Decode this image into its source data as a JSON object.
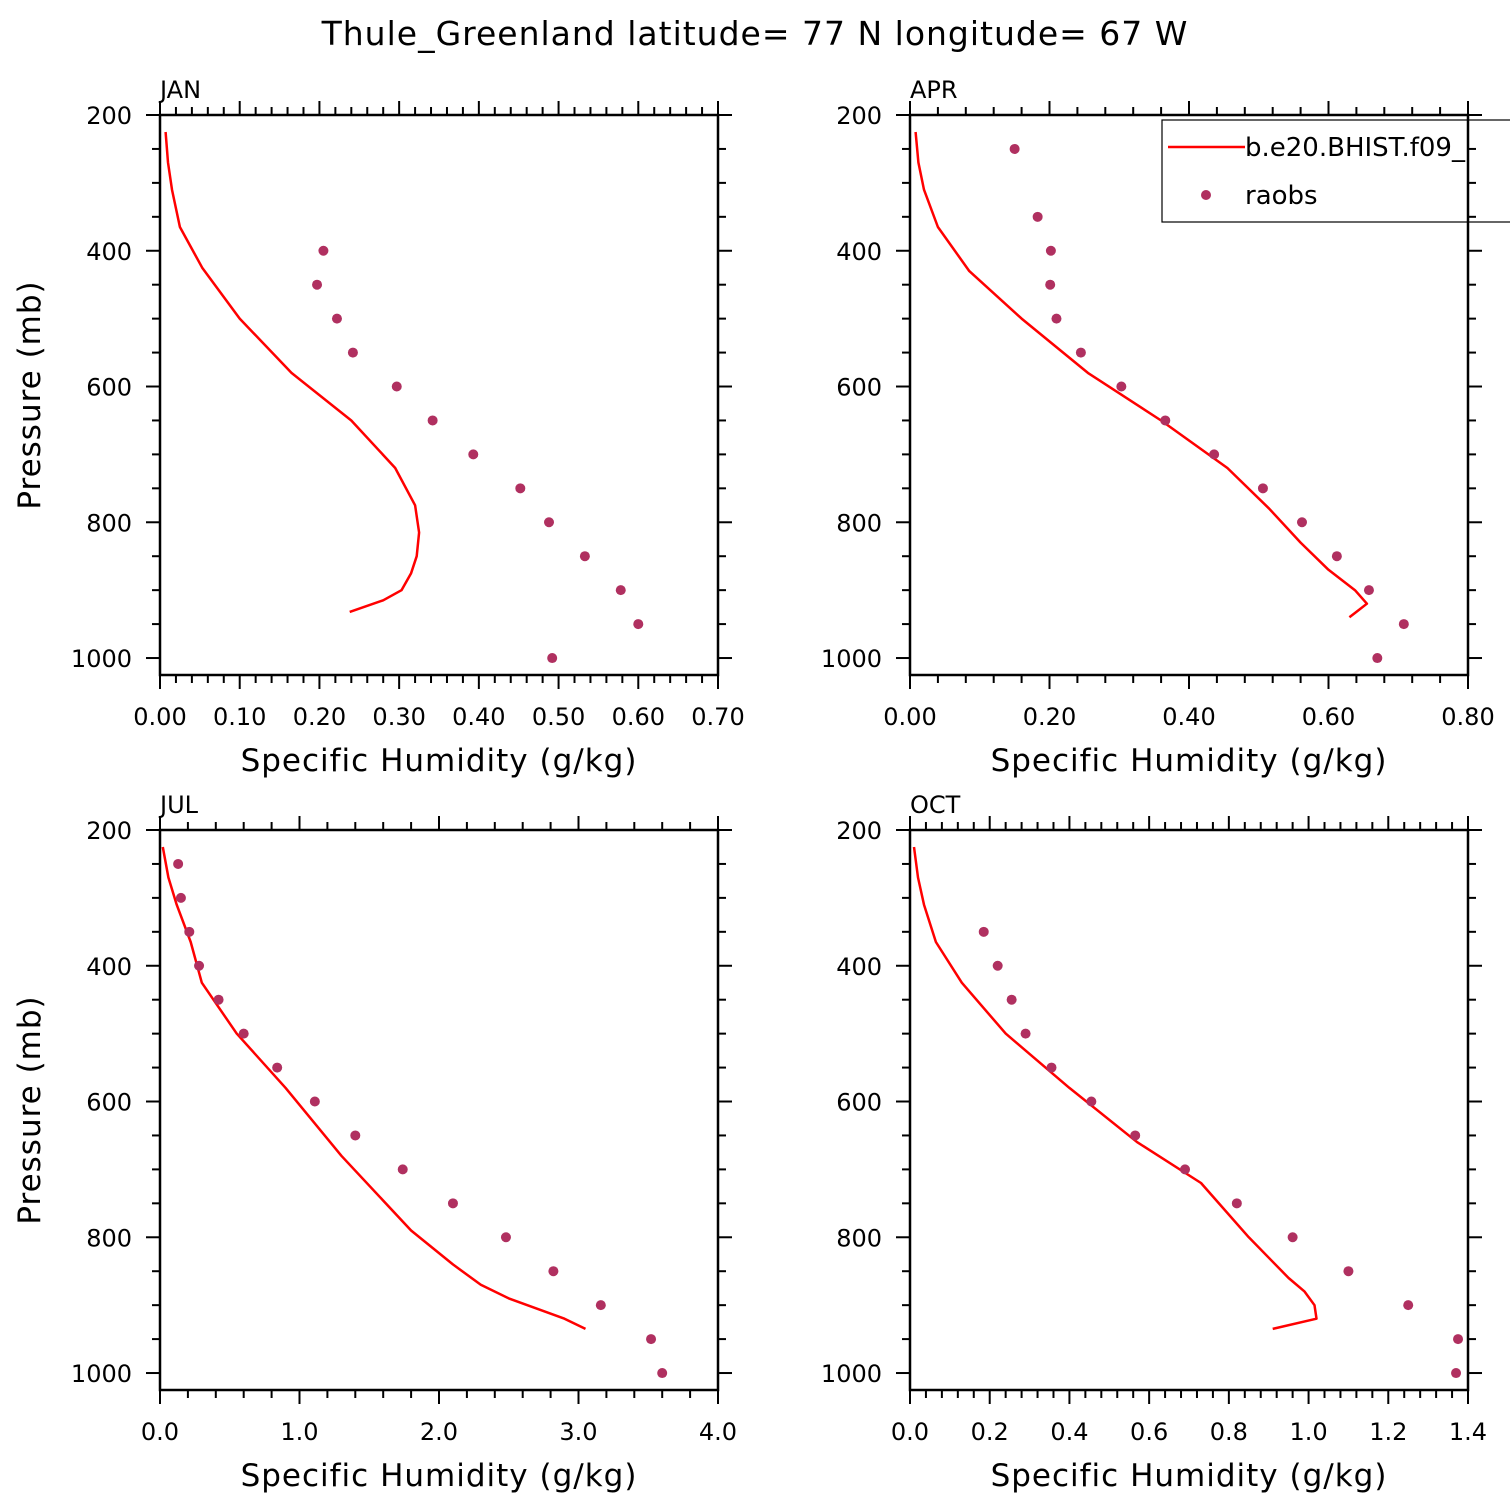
{
  "title": "Thule_Greenland  latitude= 77 N longitude= 67 W",
  "colors": {
    "model": "#ff0000",
    "raobs": "#b03060",
    "axis": "#000000"
  },
  "legend": {
    "placement": "top-right of APR panel",
    "entries": [
      {
        "label": "b.e20.BHIST.f09_",
        "marker": "line",
        "color": "#ff0000"
      },
      {
        "label": "raobs",
        "marker": "dot",
        "color": "#b03060"
      }
    ]
  },
  "chart_data": [
    {
      "type": "line",
      "panel": "JAN",
      "xlabel": "Specific Humidity (g/kg)",
      "ylabel": "Pressure (mb)",
      "xlim": [
        0,
        0.7
      ],
      "ylim": [
        200,
        1025
      ],
      "y_inverted": true,
      "xticks": [
        "0.00",
        "0.10",
        "0.20",
        "0.30",
        "0.40",
        "0.50",
        "0.60",
        "0.70"
      ],
      "xtick_values": [
        0,
        0.1,
        0.2,
        0.3,
        0.4,
        0.5,
        0.6,
        0.7
      ],
      "yticks": [
        200,
        400,
        600,
        800,
        1000
      ],
      "series": [
        {
          "name": "b.e20.BHIST.f09_",
          "kind": "line",
          "color": "#ff0000",
          "x": [
            0.007,
            0.01,
            0.015,
            0.025,
            0.053,
            0.1,
            0.165,
            0.24,
            0.295,
            0.32,
            0.325,
            0.322,
            0.315,
            0.303,
            0.28,
            0.238
          ],
          "y": [
            225,
            270,
            310,
            365,
            425,
            500,
            580,
            650,
            720,
            775,
            815,
            850,
            875,
            900,
            915,
            932
          ]
        },
        {
          "name": "raobs",
          "kind": "scatter",
          "color": "#b03060",
          "x": [
            0.205,
            0.197,
            0.222,
            0.242,
            0.297,
            0.342,
            0.393,
            0.452,
            0.488,
            0.533,
            0.578,
            0.6,
            0.492
          ],
          "y": [
            400,
            450,
            500,
            550,
            600,
            650,
            700,
            750,
            800,
            850,
            900,
            950,
            1000
          ]
        }
      ]
    },
    {
      "type": "line",
      "panel": "APR",
      "xlabel": "Specific Humidity (g/kg)",
      "ylabel": "",
      "xlim": [
        0,
        0.8
      ],
      "ylim": [
        200,
        1025
      ],
      "y_inverted": true,
      "xticks": [
        "0.00",
        "0.20",
        "0.40",
        "0.60",
        "0.80"
      ],
      "xtick_values": [
        0,
        0.2,
        0.4,
        0.6,
        0.8
      ],
      "yticks": [
        200,
        400,
        600,
        800,
        1000
      ],
      "series": [
        {
          "name": "b.e20.BHIST.f09_",
          "kind": "line",
          "color": "#ff0000",
          "x": [
            0.008,
            0.012,
            0.02,
            0.04,
            0.085,
            0.16,
            0.255,
            0.36,
            0.455,
            0.515,
            0.56,
            0.6,
            0.638,
            0.655,
            0.64,
            0.63
          ],
          "y": [
            225,
            270,
            310,
            365,
            430,
            500,
            580,
            650,
            720,
            780,
            830,
            870,
            900,
            920,
            932,
            940
          ]
        },
        {
          "name": "raobs",
          "kind": "scatter",
          "color": "#b03060",
          "x": [
            0.15,
            0.183,
            0.202,
            0.201,
            0.21,
            0.245,
            0.303,
            0.366,
            0.436,
            0.506,
            0.562,
            0.612,
            0.658,
            0.708,
            0.67
          ],
          "y": [
            250,
            350,
            400,
            450,
            500,
            550,
            600,
            650,
            700,
            750,
            800,
            850,
            900,
            950,
            1000
          ]
        }
      ]
    },
    {
      "type": "line",
      "panel": "JUL",
      "xlabel": "Specific Humidity (g/kg)",
      "ylabel": "Pressure (mb)",
      "xlim": [
        0,
        4.0
      ],
      "ylim": [
        200,
        1025
      ],
      "y_inverted": true,
      "xticks": [
        "0.0",
        "1.0",
        "2.0",
        "3.0",
        "4.0"
      ],
      "xtick_values": [
        0,
        1,
        2,
        3,
        4
      ],
      "yticks": [
        200,
        400,
        600,
        800,
        1000
      ],
      "series": [
        {
          "name": "b.e20.BHIST.f09_",
          "kind": "line",
          "color": "#ff0000",
          "x": [
            0.02,
            0.06,
            0.12,
            0.22,
            0.3,
            0.55,
            0.9,
            1.3,
            1.8,
            2.1,
            2.3,
            2.5,
            2.9,
            3.05
          ],
          "y": [
            225,
            270,
            310,
            365,
            425,
            500,
            580,
            680,
            790,
            840,
            870,
            890,
            920,
            935
          ]
        },
        {
          "name": "raobs",
          "kind": "scatter",
          "color": "#b03060",
          "x": [
            0.13,
            0.15,
            0.21,
            0.28,
            0.42,
            0.6,
            0.84,
            1.11,
            1.4,
            1.74,
            2.1,
            2.48,
            2.82,
            3.16,
            3.52,
            3.6
          ],
          "y": [
            250,
            300,
            350,
            400,
            450,
            500,
            550,
            600,
            650,
            700,
            750,
            800,
            850,
            900,
            950,
            1000
          ]
        }
      ]
    },
    {
      "type": "line",
      "panel": "OCT",
      "xlabel": "Specific Humidity (g/kg)",
      "ylabel": "",
      "xlim": [
        0,
        1.4
      ],
      "ylim": [
        200,
        1025
      ],
      "y_inverted": true,
      "xticks": [
        "0.0",
        "0.2",
        "0.4",
        "0.6",
        "0.8",
        "1.0",
        "1.2",
        "1.4"
      ],
      "xtick_values": [
        0,
        0.2,
        0.4,
        0.6,
        0.8,
        1.0,
        1.2,
        1.4
      ],
      "yticks": [
        200,
        400,
        600,
        800,
        1000
      ],
      "series": [
        {
          "name": "b.e20.BHIST.f09_",
          "kind": "line",
          "color": "#ff0000",
          "x": [
            0.01,
            0.02,
            0.035,
            0.065,
            0.13,
            0.24,
            0.4,
            0.57,
            0.73,
            0.85,
            0.95,
            0.99,
            1.015,
            1.02,
            0.91
          ],
          "y": [
            225,
            270,
            310,
            365,
            425,
            500,
            580,
            660,
            720,
            800,
            860,
            880,
            900,
            920,
            935
          ]
        },
        {
          "name": "raobs",
          "kind": "scatter",
          "color": "#b03060",
          "x": [
            0.185,
            0.22,
            0.255,
            0.29,
            0.355,
            0.455,
            0.565,
            0.69,
            0.82,
            0.96,
            1.1,
            1.25,
            1.375,
            1.37
          ],
          "y": [
            350,
            400,
            450,
            500,
            550,
            600,
            650,
            700,
            750,
            800,
            850,
            900,
            950,
            1000
          ]
        }
      ]
    }
  ]
}
